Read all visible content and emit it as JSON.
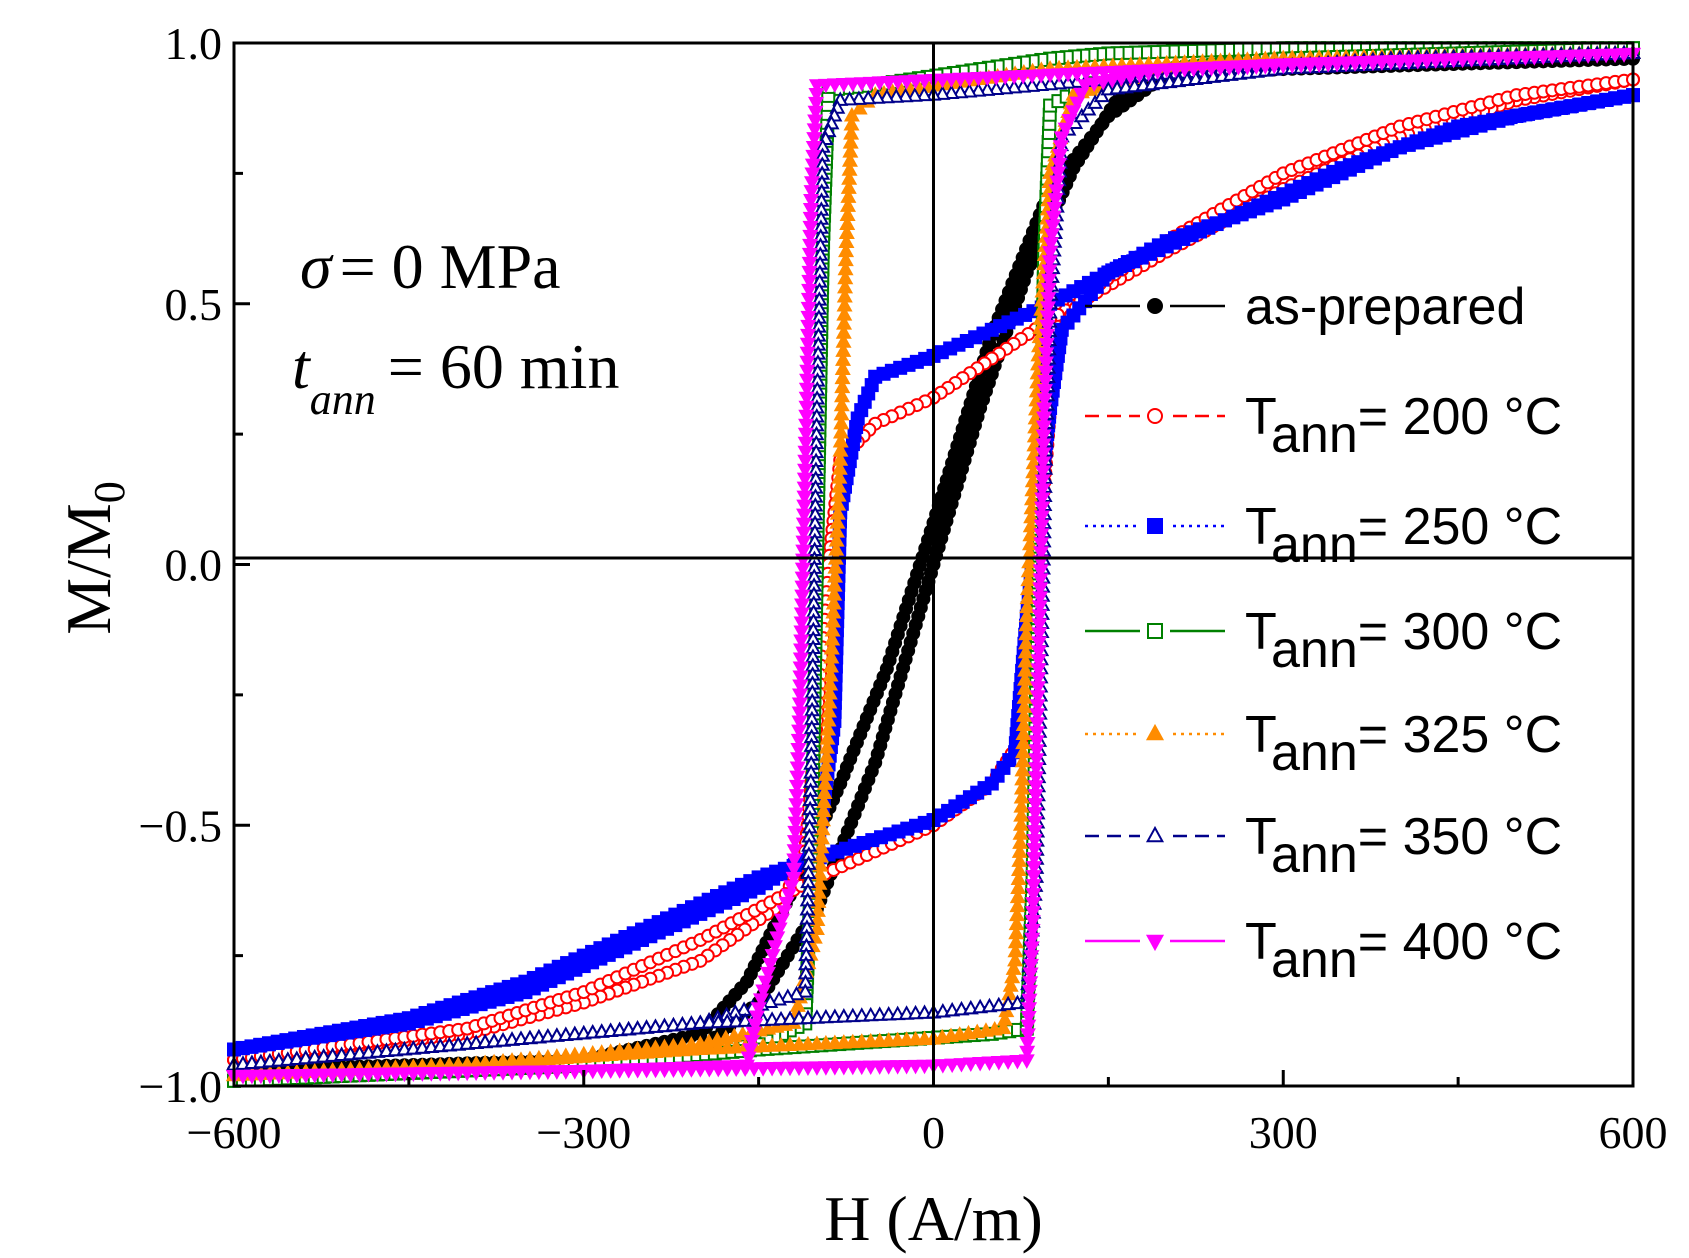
{
  "chart_data": {
    "type": "line",
    "xlabel": "H (A/m)",
    "ylabel_main": "M/M",
    "ylabel_sub": "0",
    "xlim": [
      -600,
      600
    ],
    "ylim": [
      -1.0,
      1.0
    ],
    "x_ticks": [
      -600,
      -300,
      0,
      300,
      600
    ],
    "x_tick_labels": [
      "−600",
      "−300",
      "0",
      "300",
      "600"
    ],
    "y_ticks": [
      -1.0,
      -0.5,
      0.0,
      0.5,
      1.0
    ],
    "y_tick_labels": [
      "−1.0",
      "−0.5",
      "0.0",
      "0.5",
      "1.0"
    ],
    "grid": false,
    "zero_lines": true,
    "legend_position": "right",
    "annotations": {
      "sigma_symbol": "σ",
      "sigma_rest": "= 0 MPa",
      "t_symbol": "t",
      "t_sub": "ann",
      "t_rest": "= 60 min"
    },
    "series": [
      {
        "legend_main": "as-prepared",
        "legend_sub": "",
        "legend_rest": "",
        "color": "#000000",
        "marker": "circle-filled",
        "line": "solid",
        "descending": [
          [
            600,
            0.97
          ],
          [
            300,
            0.96
          ],
          [
            200,
            0.94
          ],
          [
            150,
            0.86
          ],
          [
            100,
            0.72
          ],
          [
            50,
            0.44
          ],
          [
            0,
            0.08
          ],
          [
            -40,
            -0.2
          ],
          [
            -80,
            -0.42
          ],
          [
            -120,
            -0.62
          ],
          [
            -160,
            -0.8
          ],
          [
            -200,
            -0.9
          ],
          [
            -300,
            -0.95
          ],
          [
            -600,
            -0.97
          ]
        ],
        "ascending": [
          [
            -600,
            -0.97
          ],
          [
            -300,
            -0.96
          ],
          [
            -200,
            -0.93
          ],
          [
            -150,
            -0.84
          ],
          [
            -100,
            -0.66
          ],
          [
            -50,
            -0.38
          ],
          [
            0,
            0.0
          ],
          [
            40,
            0.3
          ],
          [
            80,
            0.56
          ],
          [
            120,
            0.76
          ],
          [
            160,
            0.9
          ],
          [
            200,
            0.94
          ],
          [
            300,
            0.95
          ],
          [
            600,
            0.97
          ]
        ]
      },
      {
        "legend_main": "T",
        "legend_sub": "ann",
        "legend_rest": "= 200 °C",
        "color": "#ff0000",
        "marker": "circle-open",
        "line": "dashed",
        "descending": [
          [
            600,
            0.93
          ],
          [
            500,
            0.89
          ],
          [
            400,
            0.82
          ],
          [
            300,
            0.72
          ],
          [
            200,
            0.6
          ],
          [
            100,
            0.47
          ],
          [
            0,
            0.32
          ],
          [
            -50,
            0.27
          ],
          [
            -80,
            0.2
          ],
          [
            -90,
            0.0
          ],
          [
            -100,
            -0.3
          ],
          [
            -110,
            -0.55
          ],
          [
            -130,
            -0.65
          ],
          [
            -200,
            -0.76
          ],
          [
            -300,
            -0.84
          ],
          [
            -400,
            -0.9
          ],
          [
            -600,
            -0.95
          ]
        ],
        "ascending": [
          [
            -600,
            -0.95
          ],
          [
            -400,
            -0.89
          ],
          [
            -300,
            -0.82
          ],
          [
            -200,
            -0.72
          ],
          [
            -100,
            -0.6
          ],
          [
            0,
            -0.5
          ],
          [
            50,
            -0.42
          ],
          [
            80,
            -0.32
          ],
          [
            90,
            0.0
          ],
          [
            100,
            0.3
          ],
          [
            110,
            0.45
          ],
          [
            130,
            0.52
          ],
          [
            200,
            0.62
          ],
          [
            300,
            0.75
          ],
          [
            400,
            0.84
          ],
          [
            500,
            0.9
          ],
          [
            600,
            0.93
          ]
        ]
      },
      {
        "legend_main": "T",
        "legend_sub": "ann",
        "legend_rest": "= 250 °C",
        "color": "#0000ff",
        "marker": "square-filled",
        "line": "dotted",
        "descending": [
          [
            600,
            0.9
          ],
          [
            500,
            0.86
          ],
          [
            400,
            0.8
          ],
          [
            300,
            0.7
          ],
          [
            200,
            0.62
          ],
          [
            100,
            0.5
          ],
          [
            0,
            0.4
          ],
          [
            -50,
            0.36
          ],
          [
            -65,
            0.28
          ],
          [
            -80,
            0.1
          ],
          [
            -85,
            -0.3
          ],
          [
            -100,
            -0.55
          ],
          [
            -150,
            -0.62
          ],
          [
            -250,
            -0.72
          ],
          [
            -350,
            -0.82
          ],
          [
            -450,
            -0.88
          ],
          [
            -600,
            -0.93
          ]
        ],
        "ascending": [
          [
            -600,
            -0.93
          ],
          [
            -450,
            -0.87
          ],
          [
            -350,
            -0.8
          ],
          [
            -250,
            -0.7
          ],
          [
            -150,
            -0.6
          ],
          [
            0,
            -0.49
          ],
          [
            50,
            -0.42
          ],
          [
            70,
            -0.36
          ],
          [
            80,
            -0.1
          ],
          [
            90,
            0.1
          ],
          [
            100,
            0.3
          ],
          [
            110,
            0.45
          ],
          [
            150,
            0.56
          ],
          [
            250,
            0.66
          ],
          [
            350,
            0.76
          ],
          [
            450,
            0.84
          ],
          [
            600,
            0.9
          ]
        ]
      },
      {
        "legend_main": "T",
        "legend_sub": "ann",
        "legend_rest": "= 300 °C",
        "color": "#008000",
        "marker": "square-open",
        "line": "solid",
        "descending": [
          [
            600,
            0.99
          ],
          [
            300,
            0.99
          ],
          [
            150,
            0.98
          ],
          [
            100,
            0.97
          ],
          [
            -50,
            0.92
          ],
          [
            -90,
            0.91
          ],
          [
            -95,
            0.6
          ],
          [
            -100,
            0.0
          ],
          [
            -105,
            -0.6
          ],
          [
            -110,
            -0.88
          ],
          [
            -150,
            -0.92
          ],
          [
            -300,
            -0.96
          ],
          [
            -600,
            -0.99
          ]
        ],
        "ascending": [
          [
            -600,
            -0.99
          ],
          [
            -300,
            -0.96
          ],
          [
            -150,
            -0.93
          ],
          [
            50,
            -0.9
          ],
          [
            80,
            -0.89
          ],
          [
            85,
            -0.6
          ],
          [
            90,
            0.0
          ],
          [
            95,
            0.6
          ],
          [
            100,
            0.88
          ],
          [
            150,
            0.94
          ],
          [
            300,
            0.97
          ],
          [
            600,
            0.99
          ]
        ]
      },
      {
        "legend_main": "T",
        "legend_sub": "ann",
        "legend_rest": "= 325 °C",
        "color": "#ff8c00",
        "marker": "triangle-up-filled",
        "line": "dotted",
        "descending": [
          [
            600,
            0.98
          ],
          [
            300,
            0.97
          ],
          [
            100,
            0.95
          ],
          [
            -50,
            0.9
          ],
          [
            -70,
            0.86
          ],
          [
            -75,
            0.6
          ],
          [
            -80,
            0.2
          ],
          [
            -90,
            -0.3
          ],
          [
            -100,
            -0.7
          ],
          [
            -120,
            -0.88
          ],
          [
            -200,
            -0.92
          ],
          [
            -400,
            -0.96
          ],
          [
            -600,
            -0.98
          ]
        ],
        "ascending": [
          [
            -600,
            -0.98
          ],
          [
            -400,
            -0.96
          ],
          [
            -200,
            -0.93
          ],
          [
            0,
            -0.91
          ],
          [
            60,
            -0.89
          ],
          [
            70,
            -0.76
          ],
          [
            75,
            -0.5
          ],
          [
            80,
            -0.1
          ],
          [
            90,
            0.4
          ],
          [
            100,
            0.75
          ],
          [
            120,
            0.9
          ],
          [
            200,
            0.95
          ],
          [
            400,
            0.97
          ],
          [
            600,
            0.98
          ]
        ]
      },
      {
        "legend_main": "T",
        "legend_sub": "ann",
        "legend_rest": "= 350 °C",
        "color": "#00008b",
        "marker": "triangle-up-open",
        "line": "dashed",
        "descending": [
          [
            600,
            0.98
          ],
          [
            400,
            0.97
          ],
          [
            200,
            0.94
          ],
          [
            100,
            0.92
          ],
          [
            0,
            0.9
          ],
          [
            -80,
            0.89
          ],
          [
            -95,
            0.8
          ],
          [
            -100,
            0.3
          ],
          [
            -105,
            -0.4
          ],
          [
            -110,
            -0.82
          ],
          [
            -200,
            -0.88
          ],
          [
            -400,
            -0.92
          ],
          [
            -600,
            -0.96
          ]
        ],
        "ascending": [
          [
            -600,
            -0.96
          ],
          [
            -400,
            -0.92
          ],
          [
            -200,
            -0.88
          ],
          [
            0,
            -0.86
          ],
          [
            80,
            -0.84
          ],
          [
            88,
            -0.6
          ],
          [
            92,
            -0.2
          ],
          [
            96,
            0.2
          ],
          [
            100,
            0.5
          ],
          [
            110,
            0.82
          ],
          [
            150,
            0.91
          ],
          [
            300,
            0.95
          ],
          [
            600,
            0.98
          ]
        ]
      },
      {
        "legend_main": "T",
        "legend_sub": "ann",
        "legend_rest": "= 400 °C",
        "color": "#ff00ff",
        "marker": "triangle-down-filled",
        "line": "solid",
        "descending": [
          [
            600,
            0.98
          ],
          [
            300,
            0.96
          ],
          [
            100,
            0.94
          ],
          [
            0,
            0.93
          ],
          [
            -100,
            0.92
          ],
          [
            -105,
            0.7
          ],
          [
            -110,
            0.2
          ],
          [
            -115,
            -0.3
          ],
          [
            -120,
            -0.6
          ],
          [
            -130,
            -0.68
          ],
          [
            -150,
            -0.85
          ],
          [
            -160,
            -0.96
          ],
          [
            -300,
            -0.97
          ],
          [
            -600,
            -0.98
          ]
        ],
        "ascending": [
          [
            -600,
            -0.98
          ],
          [
            -300,
            -0.97
          ],
          [
            0,
            -0.96
          ],
          [
            80,
            -0.95
          ],
          [
            85,
            -0.7
          ],
          [
            90,
            -0.2
          ],
          [
            95,
            0.3
          ],
          [
            100,
            0.6
          ],
          [
            110,
            0.82
          ],
          [
            130,
            0.92
          ],
          [
            200,
            0.95
          ],
          [
            600,
            0.98
          ]
        ]
      }
    ]
  }
}
